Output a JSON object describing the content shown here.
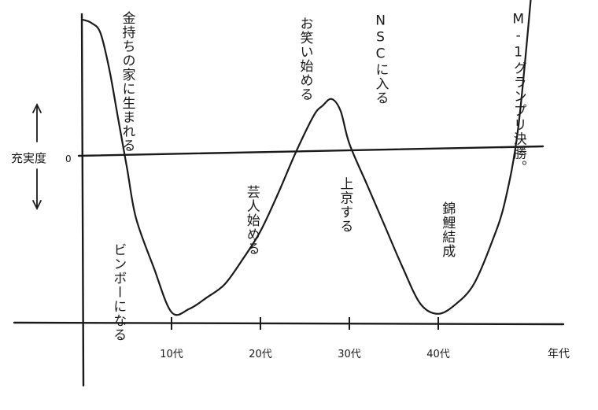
{
  "chart_data": {
    "type": "line",
    "xlabel": "年代",
    "ylabel": "充実度",
    "threshold_value_label": "0",
    "x_ticks": [
      "10代",
      "20代",
      "30代",
      "40代"
    ],
    "ylim": [
      -100,
      100
    ],
    "series": [
      {
        "x": [
          0,
          1,
          2,
          3,
          4,
          5,
          6,
          8,
          10,
          12,
          14,
          16,
          18,
          20,
          22,
          24,
          26,
          27,
          28,
          29,
          30,
          32,
          34,
          36,
          38,
          40,
          42,
          44,
          46,
          47.5,
          49,
          50.5
        ],
        "y": [
          80,
          78,
          72,
          50,
          20,
          -10,
          -40,
          -70,
          -97,
          -95,
          -88,
          -80,
          -65,
          -48,
          -25,
          0,
          22,
          28,
          32,
          25,
          5,
          -20,
          -45,
          -70,
          -92,
          -98,
          -92,
          -80,
          -55,
          -30,
          15,
          98
        ]
      }
    ],
    "annotations": [
      {
        "text": "金持ちの家に生まれる",
        "x": 5,
        "y": 92
      },
      {
        "text": "ビンボーになる",
        "x": 4,
        "y": -55
      },
      {
        "text": "芸人始める",
        "x": 19,
        "y": -20
      },
      {
        "text": "お笑い始める",
        "x": 25,
        "y": 82
      },
      {
        "text": "上京する",
        "x": 29.5,
        "y": -15
      },
      {
        "text": "NSCに入る",
        "x": 33.5,
        "y": 84
      },
      {
        "text": "錦鯉結成",
        "x": 41,
        "y": -30
      },
      {
        "text": "M-1グランプリ決勝。",
        "x": 49,
        "y": 85
      }
    ]
  }
}
